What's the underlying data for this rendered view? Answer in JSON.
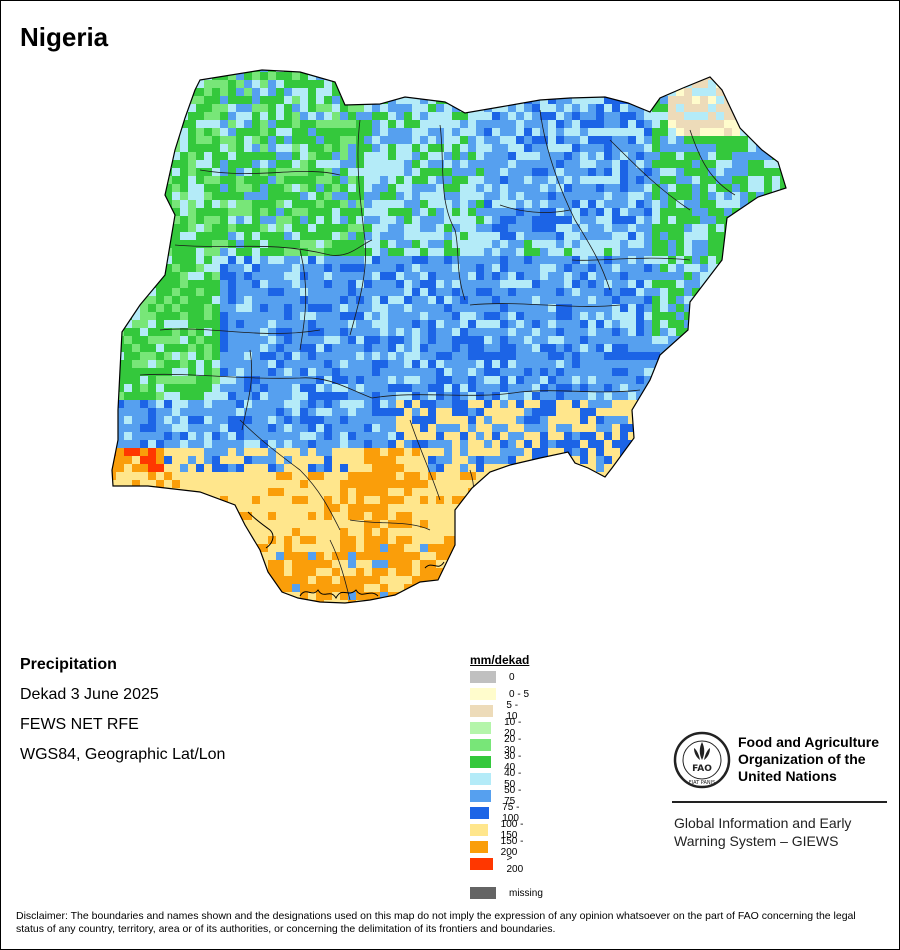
{
  "title": "Nigeria",
  "info": {
    "variable": "Precipitation",
    "period": "Dekad 3 June 2025",
    "source": "FEWS NET RFE",
    "projection": "WGS84, Geographic Lat/Lon"
  },
  "legend": {
    "title": "mm/dekad",
    "items": [
      {
        "label": "0",
        "color": "#c0c0c0"
      },
      {
        "label": "0 - 5",
        "color": "#fffccc"
      },
      {
        "label": "5 - 10",
        "color": "#eddbb9"
      },
      {
        "label": "10 - 20",
        "color": "#b4f5aa"
      },
      {
        "label": "20 - 30",
        "color": "#78e678"
      },
      {
        "label": "30 - 40",
        "color": "#34c83c"
      },
      {
        "label": "40 - 50",
        "color": "#b4ebf8"
      },
      {
        "label": "50 - 75",
        "color": "#56a0ef"
      },
      {
        "label": "75 - 100",
        "color": "#1c64e6"
      },
      {
        "label": "100 - 150",
        "color": "#ffe68c"
      },
      {
        "label": "150 - 200",
        "color": "#fa9e0a"
      },
      {
        "label": "> 200",
        "color": "#ff3700"
      }
    ],
    "missing": {
      "label": "missing",
      "color": "#646464"
    }
  },
  "organization": {
    "name_line1": "Food and Agriculture",
    "name_line2": "Organization of the",
    "name_line3": "United Nations",
    "logo_text": "FAO",
    "logo_motto": "FIAT PANIS",
    "system_line1": "Global Information and Early",
    "system_line2": "Warning System – GIEWS"
  },
  "disclaimer": "Disclaimer: The boundaries and names shown and the designations used on this map do not imply the expression of any opinion whatsoever on the part of FAO concerning the legal status of any country, territory, area or of its authorities, or concerning the delimitation of its frontiers and boundaries."
}
